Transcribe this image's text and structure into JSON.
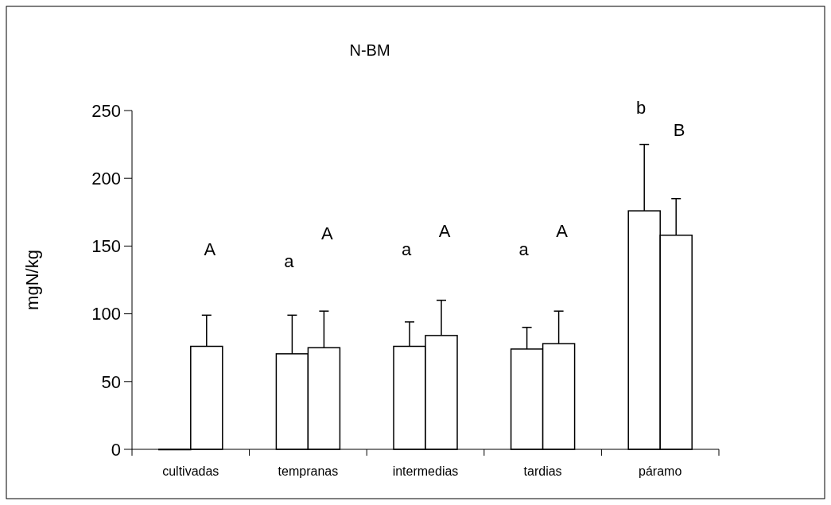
{
  "chart_data": {
    "type": "bar",
    "title": "N-BM",
    "ylabel": "mgN/kg",
    "categories": [
      "cultivadas",
      "tempranas",
      "intermedias",
      "tardias",
      "páramo"
    ],
    "series": [
      {
        "color": "#ffffff",
        "values": [
          0,
          70.5,
          76,
          74,
          176
        ],
        "errors": [
          null,
          [
            70.5,
            99
          ],
          [
            76,
            94
          ],
          [
            74,
            90
          ],
          [
            176,
            225
          ]
        ]
      },
      {
        "color": "#ffffff",
        "values": [
          76,
          75,
          84,
          78,
          158
        ],
        "errors": [
          [
            76,
            99
          ],
          [
            75,
            102
          ],
          [
            84,
            110
          ],
          [
            78,
            102
          ],
          [
            158,
            185
          ]
        ]
      }
    ],
    "ylim": [
      0,
      250
    ],
    "yticks": [
      0,
      50,
      100,
      150,
      200,
      250
    ],
    "grid": false,
    "annotations": [
      "A",
      "a",
      "A",
      "a",
      "A",
      "a",
      "A",
      "b",
      "B"
    ]
  }
}
